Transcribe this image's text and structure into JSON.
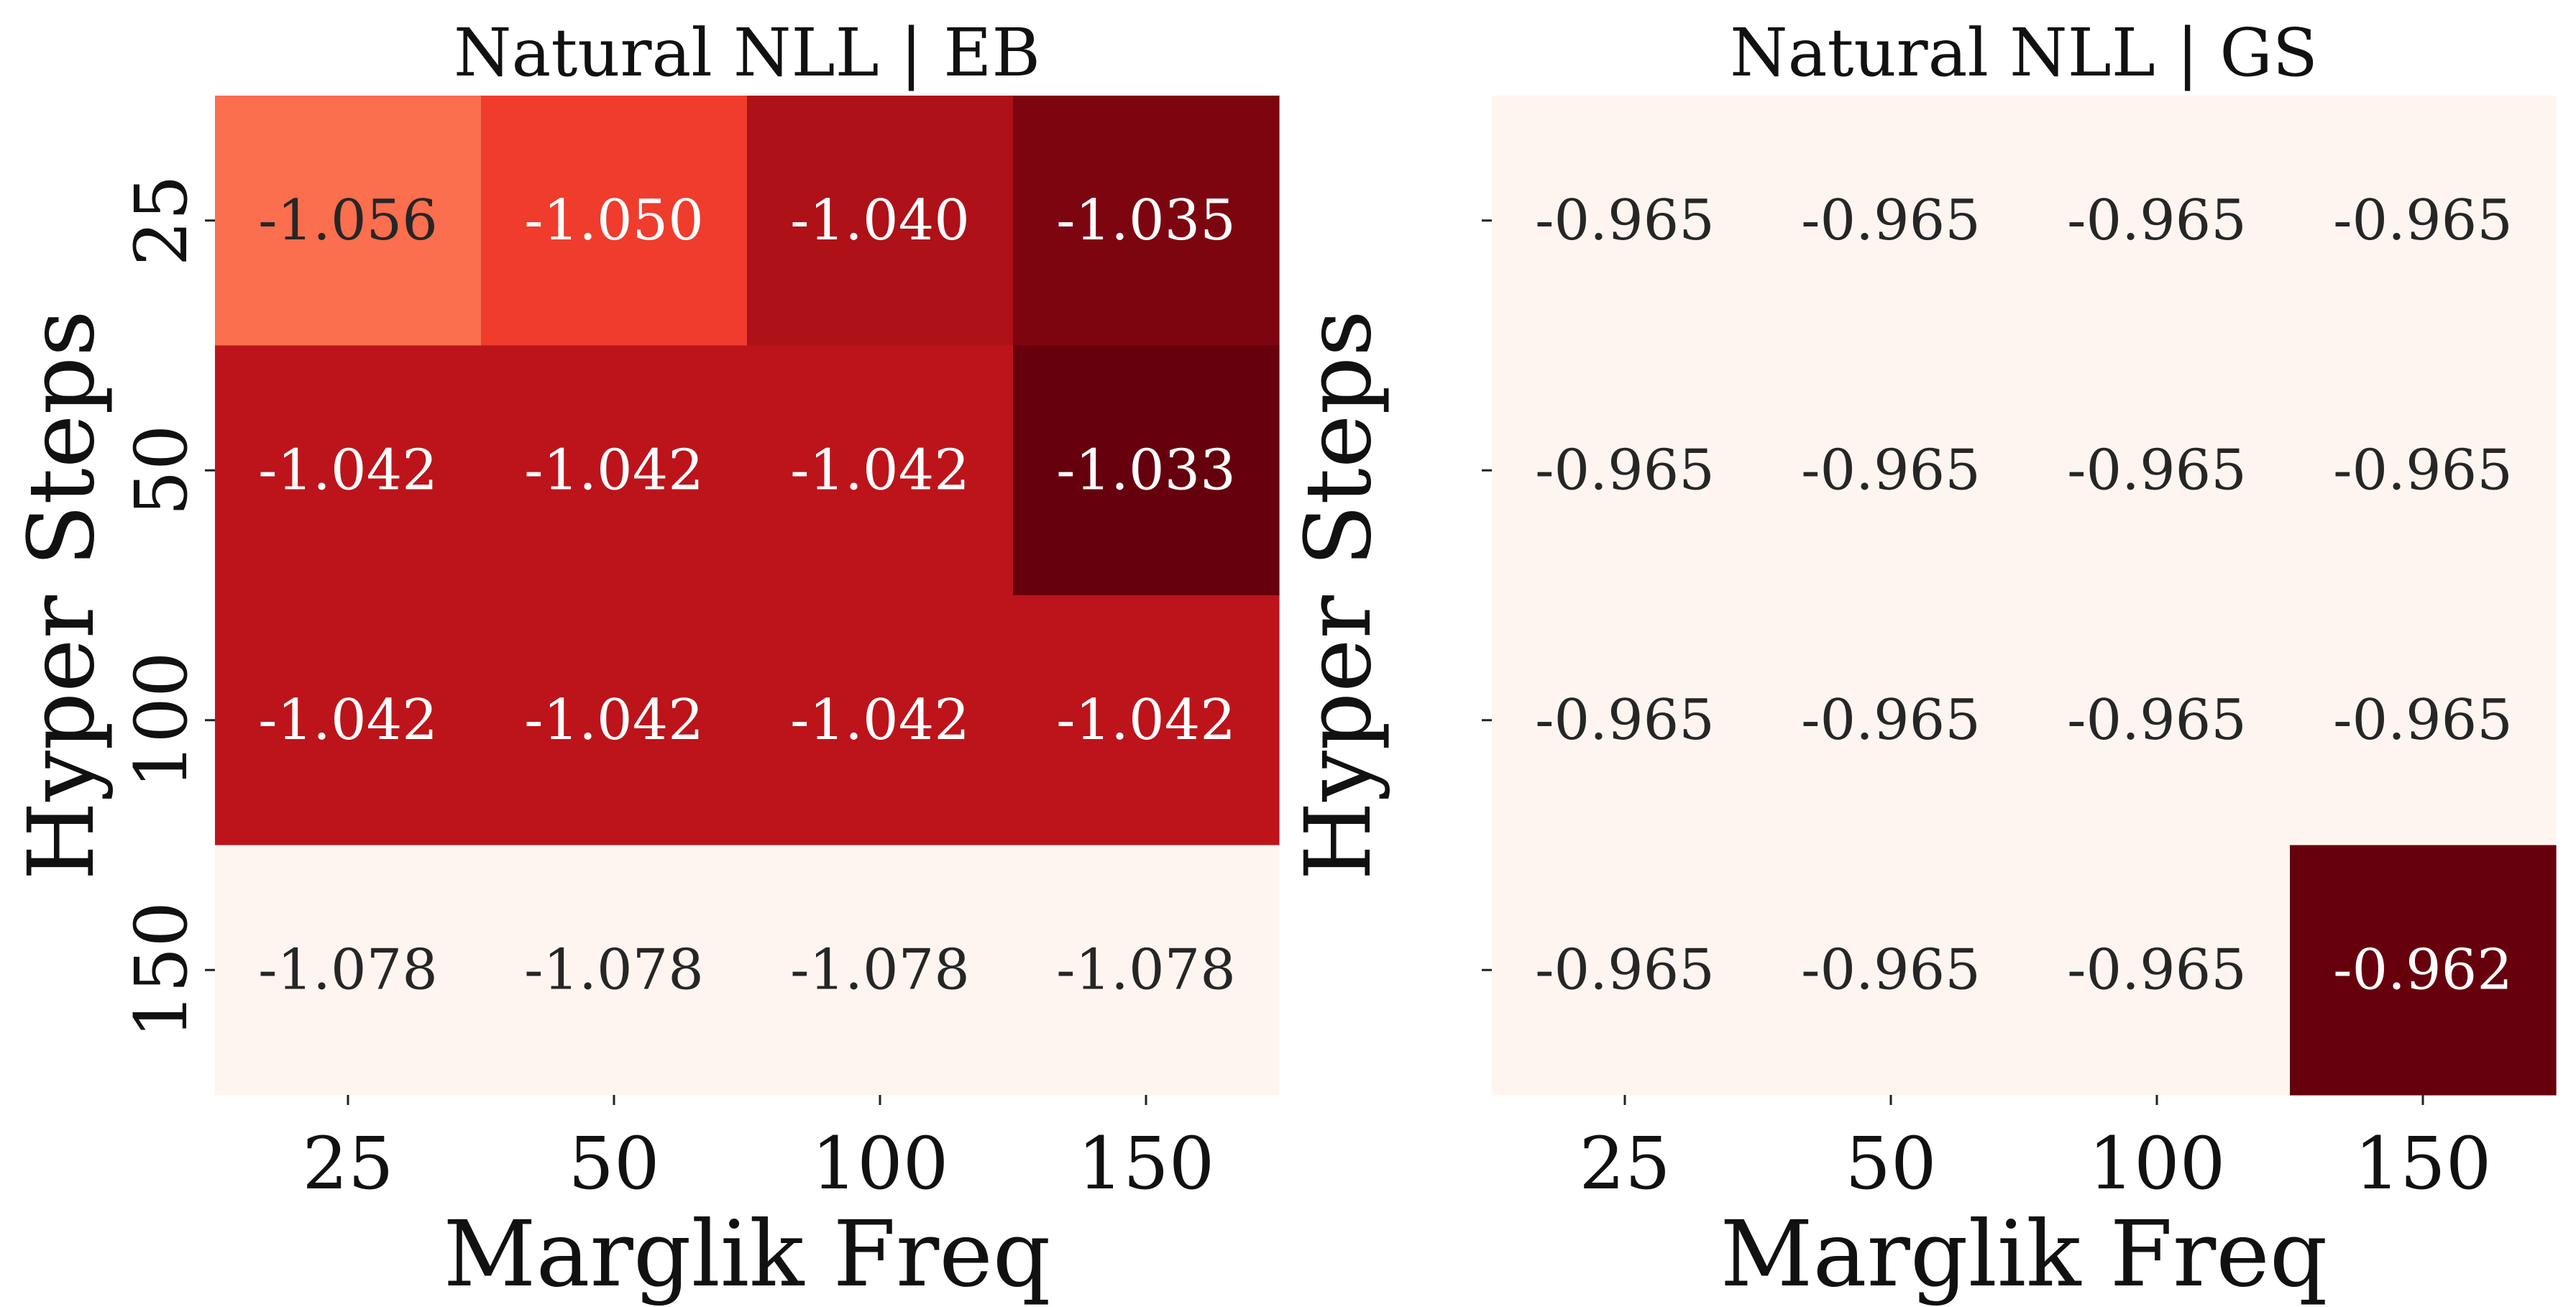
{
  "chart_data": [
    {
      "type": "heatmap",
      "title": "Natural NLL | EB",
      "xlabel": "Marglik Freq",
      "ylabel": "Hyper Steps",
      "x_categories": [
        "25",
        "50",
        "100",
        "150"
      ],
      "y_categories": [
        "25",
        "50",
        "100",
        "150"
      ],
      "values": [
        [
          "-1.056",
          "-1.050",
          "-1.040",
          "-1.035"
        ],
        [
          "-1.042",
          "-1.042",
          "-1.042",
          "-1.033"
        ],
        [
          "-1.042",
          "-1.042",
          "-1.042",
          "-1.042"
        ],
        [
          "-1.078",
          "-1.078",
          "-1.078",
          "-1.078"
        ]
      ],
      "colormap": "Reds",
      "colorbar": false
    },
    {
      "type": "heatmap",
      "title": "Natural NLL | GS",
      "xlabel": "Marglik Freq",
      "ylabel": "Hyper Steps",
      "x_categories": [
        "25",
        "50",
        "100",
        "150"
      ],
      "y_categories": [
        "",
        "",
        "",
        ""
      ],
      "values": [
        [
          "-0.965",
          "-0.965",
          "-0.965",
          "-0.965"
        ],
        [
          "-0.965",
          "-0.965",
          "-0.965",
          "-0.965"
        ],
        [
          "-0.965",
          "-0.965",
          "-0.965",
          "-0.965"
        ],
        [
          "-0.965",
          "-0.965",
          "-0.965",
          "-0.962"
        ]
      ],
      "colormap": "Reds",
      "colorbar": false
    }
  ]
}
